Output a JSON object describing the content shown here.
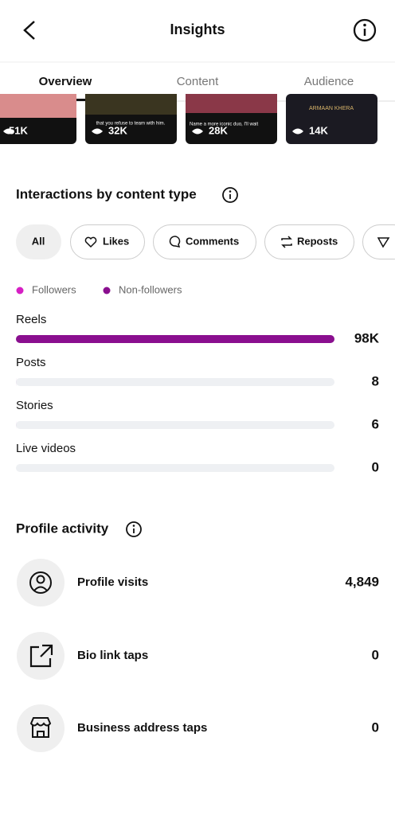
{
  "header": {
    "title": "Insights"
  },
  "tabs": [
    "Overview",
    "Content",
    "Audience"
  ],
  "videos": [
    {
      "views": "51K"
    },
    {
      "caption": "that you refuse to team with him.",
      "views": "32K"
    },
    {
      "caption": "Name a more iconic duo, I'll wait",
      "views": "28K"
    },
    {
      "caption": "ARMAAN KHERA",
      "views": "14K"
    }
  ],
  "interactions": {
    "title": "Interactions by content type",
    "filters": [
      "All",
      "Likes",
      "Comments",
      "Reposts"
    ],
    "legend": [
      {
        "name": "Followers",
        "color": "#d61fc4"
      },
      {
        "name": "Non-followers",
        "color": "#8a0f8f"
      }
    ],
    "rows": [
      {
        "label": "Reels",
        "value": 98000,
        "value_label": "98K"
      },
      {
        "label": "Posts",
        "value": 8
      },
      {
        "label": "Stories",
        "value": 6
      },
      {
        "label": "Live videos",
        "value": 0
      }
    ]
  },
  "profile_activity": {
    "title": "Profile activity",
    "items": [
      {
        "label": "Profile visits",
        "value": "4,849"
      },
      {
        "label": "Bio link taps",
        "value": "0"
      },
      {
        "label": "Business address taps",
        "value": "0"
      }
    ]
  }
}
